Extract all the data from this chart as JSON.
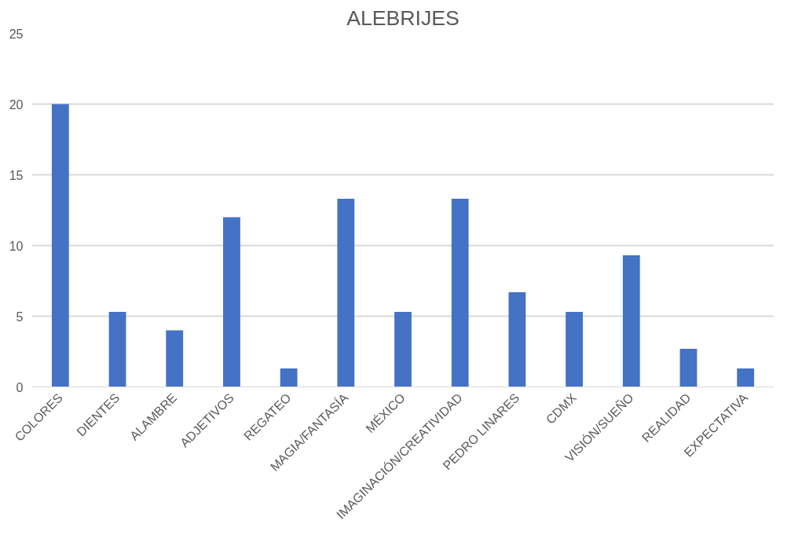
{
  "chart_data": {
    "type": "bar",
    "title": "ALEBRIJES",
    "categories": [
      "COLORES",
      "DIENTES",
      "ALAMBRE",
      "ADJETIVOS",
      "REGATEO",
      "MAGIA/FANTASÍA",
      "MÉXICO",
      "IMAGINACIÓN/CREATIVIDAD",
      "PEDRO LINARES",
      "CDMX",
      "VISIÓN/SUEÑO",
      "REALIDAD",
      "EXPECTATIVA"
    ],
    "values": [
      20,
      5.3,
      4,
      12,
      1.3,
      13.3,
      5.3,
      13.3,
      6.7,
      5.3,
      9.3,
      2.7,
      1.3
    ],
    "color": "#4472c4",
    "ylim": [
      0,
      25
    ],
    "yticks": [
      0,
      5,
      10,
      15,
      20,
      25
    ],
    "grid": "y"
  }
}
